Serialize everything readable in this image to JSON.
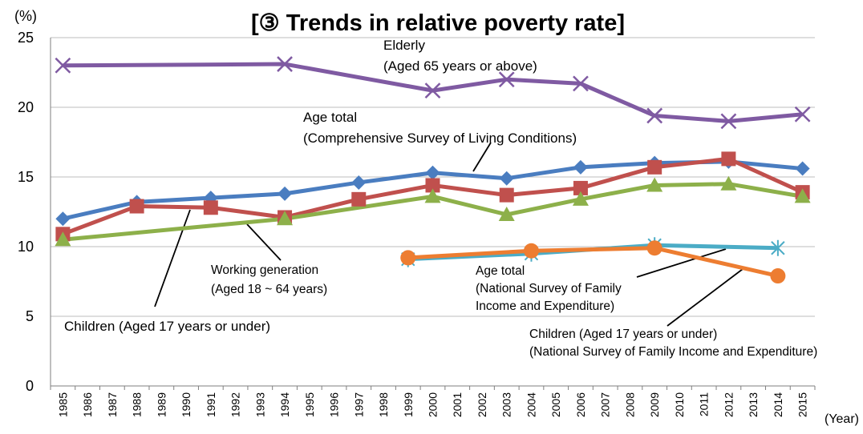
{
  "chart_data": {
    "type": "line",
    "title": "[③ Trends in relative poverty rate]",
    "ylabel": "(%)",
    "xlabel": "(Year)",
    "ylim": [
      0,
      25
    ],
    "yticks": [
      0,
      5,
      10,
      15,
      20,
      25
    ],
    "grid": true,
    "categories": [
      "1985",
      "1986",
      "1987",
      "1988",
      "1989",
      "1990",
      "1991",
      "1992",
      "1993",
      "1994",
      "1995",
      "1996",
      "1997",
      "1998",
      "1999",
      "2000",
      "2001",
      "2002",
      "2003",
      "2004",
      "2005",
      "2006",
      "2007",
      "2008",
      "2009",
      "2010",
      "2011",
      "2012",
      "2013",
      "2014",
      "2015"
    ],
    "series": [
      {
        "name": "Elderly (Aged 65 years or above)",
        "color": "#7f5aa2",
        "marker": "x",
        "points": [
          [
            "1985",
            23.0
          ],
          [
            "1994",
            23.1
          ],
          [
            "2000",
            21.2
          ],
          [
            "2003",
            22.0
          ],
          [
            "2006",
            21.7
          ],
          [
            "2009",
            19.4
          ],
          [
            "2012",
            19.0
          ],
          [
            "2015",
            19.5
          ]
        ]
      },
      {
        "name": "Age total (Comprehensive Survey of Living Conditions)",
        "color": "#4a7dc0",
        "marker": "diamond",
        "points": [
          [
            "1985",
            12.0
          ],
          [
            "1988",
            13.2
          ],
          [
            "1991",
            13.5
          ],
          [
            "1994",
            13.8
          ],
          [
            "1997",
            14.6
          ],
          [
            "2000",
            15.3
          ],
          [
            "2003",
            14.9
          ],
          [
            "2006",
            15.7
          ],
          [
            "2009",
            16.0
          ],
          [
            "2012",
            16.1
          ],
          [
            "2015",
            15.6
          ]
        ]
      },
      {
        "name": "Children (Aged 17 years or under)",
        "color": "#c0504d",
        "marker": "square",
        "points": [
          [
            "1985",
            10.9
          ],
          [
            "1988",
            12.9
          ],
          [
            "1991",
            12.8
          ],
          [
            "1994",
            12.1
          ],
          [
            "1997",
            13.4
          ],
          [
            "2000",
            14.4
          ],
          [
            "2003",
            13.7
          ],
          [
            "2006",
            14.2
          ],
          [
            "2009",
            15.7
          ],
          [
            "2012",
            16.3
          ],
          [
            "2015",
            13.9
          ]
        ]
      },
      {
        "name": "Working generation (Aged 18 ~ 64 years)",
        "color": "#8db04a",
        "marker": "triangle",
        "points": [
          [
            "1985",
            10.5
          ],
          [
            "1994",
            12.0
          ],
          [
            "2000",
            13.6
          ],
          [
            "2003",
            12.3
          ],
          [
            "2006",
            13.4
          ],
          [
            "2009",
            14.4
          ],
          [
            "2012",
            14.5
          ],
          [
            "2015",
            13.6
          ]
        ]
      },
      {
        "name": "Age total (National Survey of Family Income and Expenditure)",
        "color": "#4bacc6",
        "marker": "asterisk",
        "points": [
          [
            "1999",
            9.1
          ],
          [
            "2004",
            9.5
          ],
          [
            "2009",
            10.1
          ],
          [
            "2014",
            9.9
          ]
        ]
      },
      {
        "name": "Children (Aged 17 years or under) (National Survey of Family Income and Expenditure)",
        "color": "#ed7d31",
        "marker": "circle",
        "points": [
          [
            "1999",
            9.2
          ],
          [
            "2004",
            9.7
          ],
          [
            "2009",
            9.9
          ],
          [
            "2014",
            7.9
          ]
        ]
      }
    ],
    "annotations": {
      "elderly": [
        "Elderly",
        "(Aged 65 years or above)"
      ],
      "age_total_cslc": [
        "Age total",
        "(Comprehensive Survey of Living Conditions)"
      ],
      "working": [
        "Working generation",
        "(Aged 18 ~ 64 years)"
      ],
      "children_cslc": [
        "Children (Aged 17 years or under)"
      ],
      "age_total_nsfie": [
        "Age total",
        "(National Survey of Family",
        "Income and Expenditure)"
      ],
      "children_nsfie": [
        "Children (Aged 17 years or under)",
        "(National Survey of Family Income and Expenditure)"
      ]
    }
  }
}
